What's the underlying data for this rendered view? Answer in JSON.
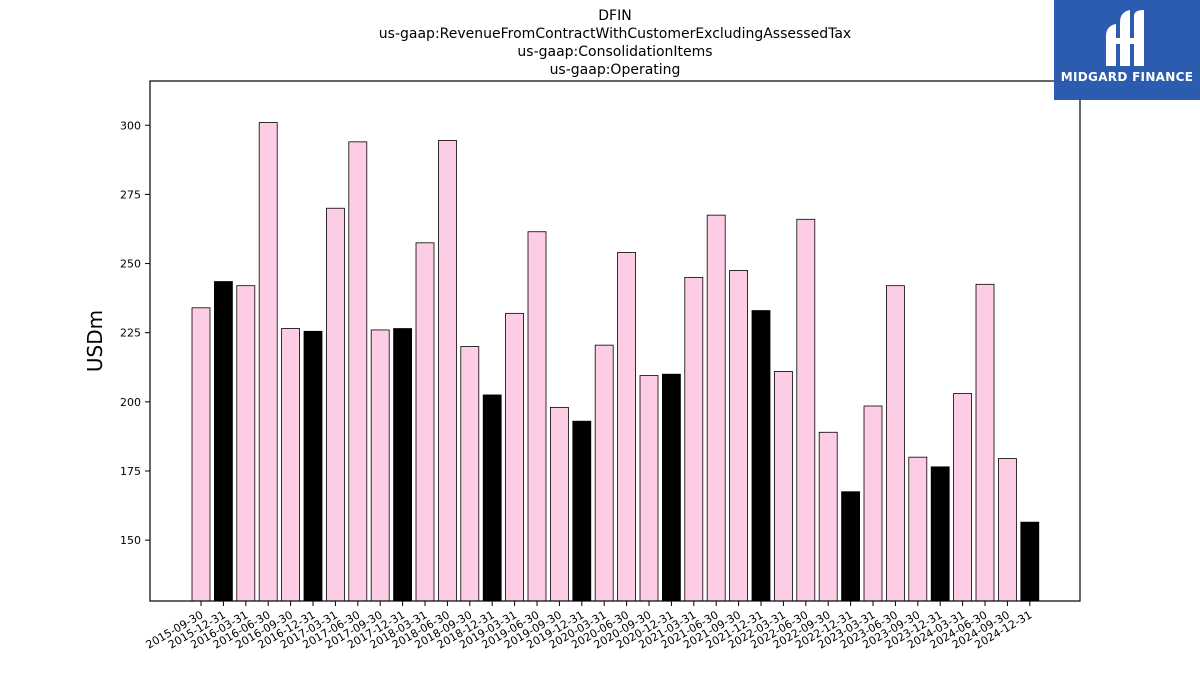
{
  "titles": [
    "DFIN",
    "us-gaap:RevenueFromContractWithCustomerExcludingAssessedTax",
    "us-gaap:ConsolidationItems",
    "us-gaap:Operating"
  ],
  "logo": {
    "text": "MIDGARD FINANCE",
    "color": "#2b5caf"
  },
  "colors": {
    "pink": "#fccde5",
    "black": "#000000"
  },
  "chart_data": {
    "type": "bar",
    "ylabel": "USDm",
    "ylim": [
      128,
      316
    ],
    "yticks": [
      150,
      175,
      200,
      225,
      250,
      275,
      300
    ],
    "grid": false,
    "legend": "none",
    "categories": [
      "2015-09-30",
      "2015-12-31",
      "2016-03-31",
      "2016-06-30",
      "2016-09-30",
      "2016-12-31",
      "2017-03-31",
      "2017-06-30",
      "2017-09-30",
      "2017-12-31",
      "2018-03-31",
      "2018-06-30",
      "2018-09-30",
      "2018-12-31",
      "2019-03-31",
      "2019-06-30",
      "2019-09-30",
      "2019-12-31",
      "2020-03-31",
      "2020-06-30",
      "2020-09-30",
      "2020-12-31",
      "2021-03-31",
      "2021-06-30",
      "2021-09-30",
      "2021-12-31",
      "2022-03-31",
      "2022-06-30",
      "2022-09-30",
      "2022-12-31",
      "2023-03-31",
      "2023-06-30",
      "2023-09-30",
      "2023-12-31",
      "2024-03-31",
      "2024-06-30",
      "2024-09-30",
      "2024-12-31"
    ],
    "values": [
      234,
      243.5,
      242,
      301,
      226.5,
      225.5,
      270,
      294,
      226,
      226.5,
      257.5,
      294.5,
      220,
      202.5,
      232,
      261.5,
      198,
      193,
      220.5,
      254,
      209.5,
      210,
      245,
      267.5,
      247.5,
      233,
      211,
      266,
      189,
      167.5,
      198.5,
      242,
      180,
      176.5,
      203,
      242.5,
      179.5,
      156.5
    ],
    "bar_colors": [
      "pink",
      "black",
      "pink",
      "pink",
      "pink",
      "black",
      "pink",
      "pink",
      "pink",
      "black",
      "pink",
      "pink",
      "pink",
      "black",
      "pink",
      "pink",
      "pink",
      "black",
      "pink",
      "pink",
      "pink",
      "black",
      "pink",
      "pink",
      "pink",
      "black",
      "pink",
      "pink",
      "pink",
      "black",
      "pink",
      "pink",
      "pink",
      "black",
      "pink",
      "pink",
      "pink",
      "black"
    ]
  }
}
